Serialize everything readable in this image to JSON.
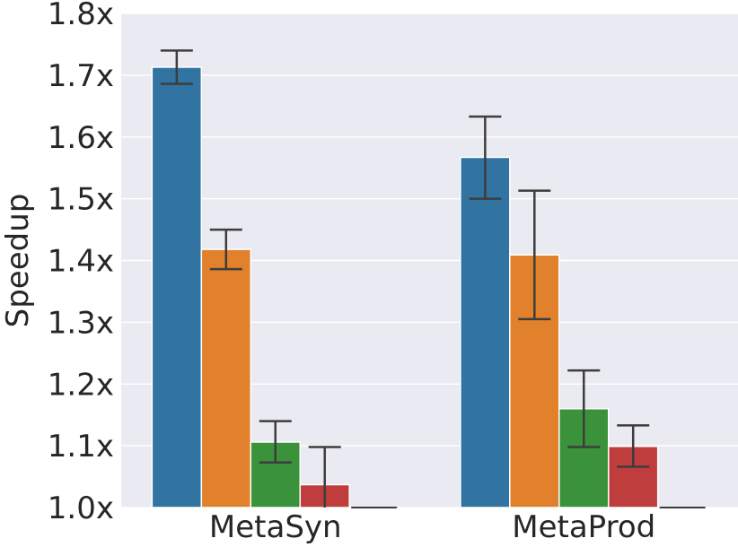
{
  "chart_data": {
    "type": "bar",
    "title": "",
    "xlabel": "",
    "ylabel": "Speedup",
    "ylim": [
      1.0,
      1.8
    ],
    "yticks": [
      "1.0x",
      "1.1x",
      "1.2x",
      "1.3x",
      "1.4x",
      "1.5x",
      "1.6x",
      "1.7x",
      "1.8x"
    ],
    "ytick_values": [
      1.0,
      1.1,
      1.2,
      1.3,
      1.4,
      1.5,
      1.6,
      1.7,
      1.8
    ],
    "categories": [
      "MetaSyn",
      "MetaProd"
    ],
    "grid": true,
    "background": "#eaeaf2",
    "series": [
      {
        "color": "#3274a1",
        "values": [
          1.713,
          1.567
        ],
        "err_low": [
          1.686,
          1.5
        ],
        "err_high": [
          1.74,
          1.633
        ]
      },
      {
        "color": "#e1812c",
        "values": [
          1.418,
          1.409
        ],
        "err_low": [
          1.386,
          1.305
        ],
        "err_high": [
          1.45,
          1.513
        ]
      },
      {
        "color": "#3a923a",
        "values": [
          1.106,
          1.16
        ],
        "err_low": [
          1.073,
          1.098
        ],
        "err_high": [
          1.14,
          1.222
        ]
      },
      {
        "color": "#c03d3e",
        "values": [
          1.037,
          1.099
        ],
        "err_low": [
          0.98,
          1.066
        ],
        "err_high": [
          1.098,
          1.133
        ]
      },
      {
        "color": "#9372b2",
        "values": [
          1.0,
          1.0
        ],
        "err_low": [
          1.0,
          1.0
        ],
        "err_high": [
          1.0,
          1.0
        ]
      }
    ]
  }
}
